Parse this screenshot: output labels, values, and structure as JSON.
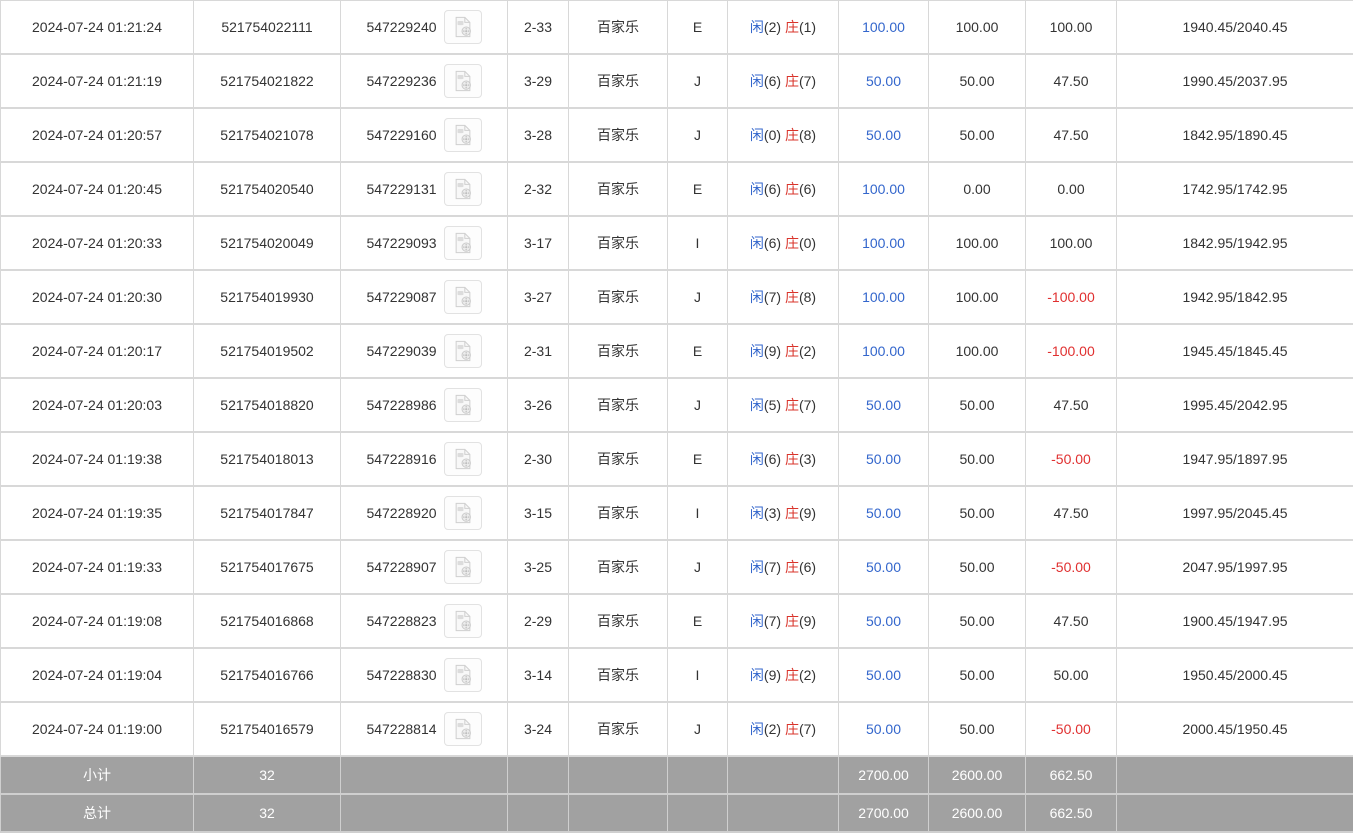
{
  "colors": {
    "link_blue": "#3366cc",
    "banker_red": "#d9342b",
    "negative_red": "#e03030",
    "footer_bg": "#a1a1a1",
    "row_border": "#d8d8d8",
    "body_text": "#333333"
  },
  "icons": {
    "video_icon": "video-file-icon"
  },
  "table": {
    "result_labels": {
      "player": "闲",
      "banker": "庄"
    },
    "rows": [
      {
        "time": "2024-07-24 01:21:24",
        "order_id": "521754022111",
        "round_id": "547229240",
        "table_no": "2-33",
        "game": "百家乐",
        "seat": "E",
        "player_score": "2",
        "banker_score": "1",
        "bet": "100.00",
        "valid_bet": "100.00",
        "winloss": "100.00",
        "balance": "1940.45/2040.45"
      },
      {
        "time": "2024-07-24 01:21:19",
        "order_id": "521754021822",
        "round_id": "547229236",
        "table_no": "3-29",
        "game": "百家乐",
        "seat": "J",
        "player_score": "6",
        "banker_score": "7",
        "bet": "50.00",
        "valid_bet": "50.00",
        "winloss": "47.50",
        "balance": "1990.45/2037.95"
      },
      {
        "time": "2024-07-24 01:20:57",
        "order_id": "521754021078",
        "round_id": "547229160",
        "table_no": "3-28",
        "game": "百家乐",
        "seat": "J",
        "player_score": "0",
        "banker_score": "8",
        "bet": "50.00",
        "valid_bet": "50.00",
        "winloss": "47.50",
        "balance": "1842.95/1890.45"
      },
      {
        "time": "2024-07-24 01:20:45",
        "order_id": "521754020540",
        "round_id": "547229131",
        "table_no": "2-32",
        "game": "百家乐",
        "seat": "E",
        "player_score": "6",
        "banker_score": "6",
        "bet": "100.00",
        "valid_bet": "0.00",
        "winloss": "0.00",
        "balance": "1742.95/1742.95"
      },
      {
        "time": "2024-07-24 01:20:33",
        "order_id": "521754020049",
        "round_id": "547229093",
        "table_no": "3-17",
        "game": "百家乐",
        "seat": "I",
        "player_score": "6",
        "banker_score": "0",
        "bet": "100.00",
        "valid_bet": "100.00",
        "winloss": "100.00",
        "balance": "1842.95/1942.95"
      },
      {
        "time": "2024-07-24 01:20:30",
        "order_id": "521754019930",
        "round_id": "547229087",
        "table_no": "3-27",
        "game": "百家乐",
        "seat": "J",
        "player_score": "7",
        "banker_score": "8",
        "bet": "100.00",
        "valid_bet": "100.00",
        "winloss": "-100.00",
        "balance": "1942.95/1842.95"
      },
      {
        "time": "2024-07-24 01:20:17",
        "order_id": "521754019502",
        "round_id": "547229039",
        "table_no": "2-31",
        "game": "百家乐",
        "seat": "E",
        "player_score": "9",
        "banker_score": "2",
        "bet": "100.00",
        "valid_bet": "100.00",
        "winloss": "-100.00",
        "balance": "1945.45/1845.45"
      },
      {
        "time": "2024-07-24 01:20:03",
        "order_id": "521754018820",
        "round_id": "547228986",
        "table_no": "3-26",
        "game": "百家乐",
        "seat": "J",
        "player_score": "5",
        "banker_score": "7",
        "bet": "50.00",
        "valid_bet": "50.00",
        "winloss": "47.50",
        "balance": "1995.45/2042.95"
      },
      {
        "time": "2024-07-24 01:19:38",
        "order_id": "521754018013",
        "round_id": "547228916",
        "table_no": "2-30",
        "game": "百家乐",
        "seat": "E",
        "player_score": "6",
        "banker_score": "3",
        "bet": "50.00",
        "valid_bet": "50.00",
        "winloss": "-50.00",
        "balance": "1947.95/1897.95"
      },
      {
        "time": "2024-07-24 01:19:35",
        "order_id": "521754017847",
        "round_id": "547228920",
        "table_no": "3-15",
        "game": "百家乐",
        "seat": "I",
        "player_score": "3",
        "banker_score": "9",
        "bet": "50.00",
        "valid_bet": "50.00",
        "winloss": "47.50",
        "balance": "1997.95/2045.45"
      },
      {
        "time": "2024-07-24 01:19:33",
        "order_id": "521754017675",
        "round_id": "547228907",
        "table_no": "3-25",
        "game": "百家乐",
        "seat": "J",
        "player_score": "7",
        "banker_score": "6",
        "bet": "50.00",
        "valid_bet": "50.00",
        "winloss": "-50.00",
        "balance": "2047.95/1997.95"
      },
      {
        "time": "2024-07-24 01:19:08",
        "order_id": "521754016868",
        "round_id": "547228823",
        "table_no": "2-29",
        "game": "百家乐",
        "seat": "E",
        "player_score": "7",
        "banker_score": "9",
        "bet": "50.00",
        "valid_bet": "50.00",
        "winloss": "47.50",
        "balance": "1900.45/1947.95"
      },
      {
        "time": "2024-07-24 01:19:04",
        "order_id": "521754016766",
        "round_id": "547228830",
        "table_no": "3-14",
        "game": "百家乐",
        "seat": "I",
        "player_score": "9",
        "banker_score": "2",
        "bet": "50.00",
        "valid_bet": "50.00",
        "winloss": "50.00",
        "balance": "1950.45/2000.45"
      },
      {
        "time": "2024-07-24 01:19:00",
        "order_id": "521754016579",
        "round_id": "547228814",
        "table_no": "3-24",
        "game": "百家乐",
        "seat": "J",
        "player_score": "2",
        "banker_score": "7",
        "bet": "50.00",
        "valid_bet": "50.00",
        "winloss": "-50.00",
        "balance": "2000.45/1950.45"
      }
    ],
    "footer": [
      {
        "label": "小计",
        "count": "32",
        "bet_total": "2700.00",
        "valid_total": "2600.00",
        "winloss_total": "662.50"
      },
      {
        "label": "总计",
        "count": "32",
        "bet_total": "2700.00",
        "valid_total": "2600.00",
        "winloss_total": "662.50"
      }
    ]
  }
}
